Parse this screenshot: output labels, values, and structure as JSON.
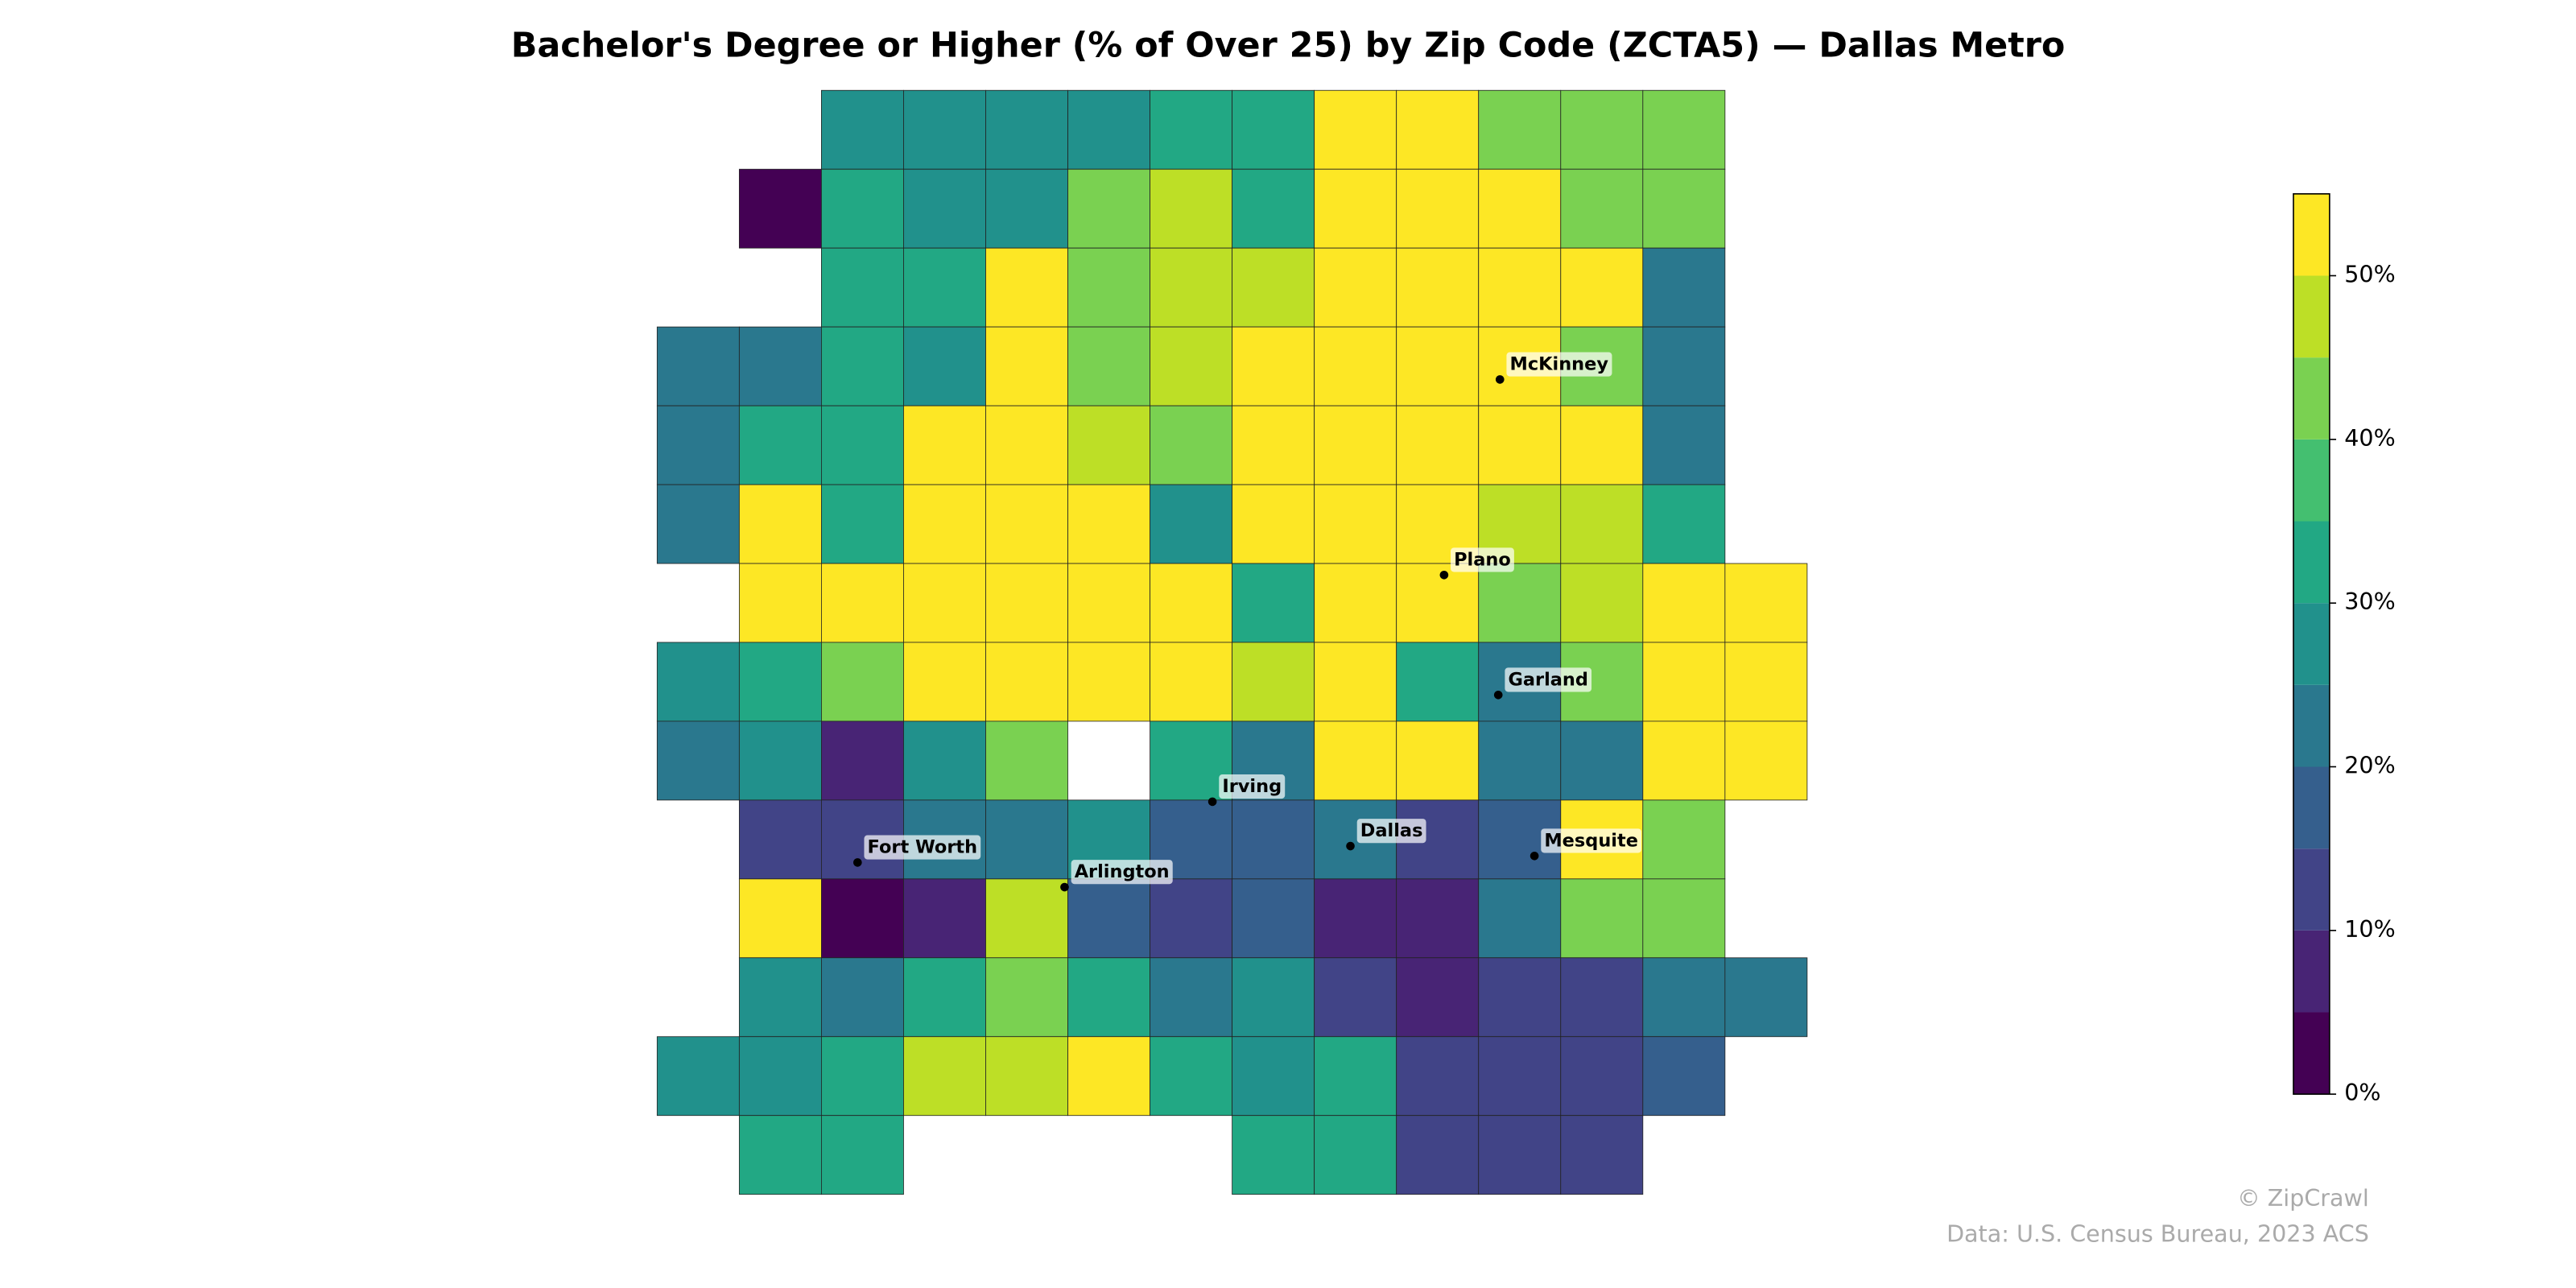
{
  "chart_data": {
    "type": "choropleth",
    "title": "Bachelor's Degree or Higher (% of Over 25) by Zip Code (ZCTA5) — Dallas Metro",
    "grid": [
      [
        null,
        null,
        27,
        27,
        27,
        27,
        32,
        32,
        55,
        55,
        42,
        42,
        42,
        null
      ],
      [
        null,
        2,
        32,
        27,
        27,
        42,
        45,
        32,
        55,
        55,
        55,
        42,
        42,
        null
      ],
      [
        null,
        null,
        32,
        32,
        50,
        42,
        45,
        45,
        55,
        55,
        55,
        55,
        22,
        null
      ],
      [
        22,
        22,
        32,
        27,
        50,
        40,
        45,
        55,
        55,
        55,
        55,
        42,
        22,
        null
      ],
      [
        22,
        32,
        32,
        55,
        55,
        45,
        40,
        55,
        55,
        55,
        55,
        55,
        22,
        null
      ],
      [
        22,
        55,
        32,
        55,
        55,
        55,
        27,
        55,
        55,
        55,
        45,
        45,
        32,
        null
      ],
      [
        null,
        55,
        50,
        55,
        55,
        55,
        55,
        32,
        55,
        50,
        40,
        45,
        50,
        50
      ],
      [
        27,
        32,
        40,
        55,
        55,
        55,
        55,
        45,
        55,
        32,
        20,
        40,
        50,
        50
      ],
      [
        22,
        27,
        7,
        27,
        40,
        null,
        32,
        22,
        55,
        50,
        22,
        22,
        50,
        50
      ],
      [
        null,
        12,
        12,
        22,
        22,
        27,
        17,
        17,
        22,
        12,
        17,
        55,
        40,
        null
      ],
      [
        null,
        50,
        2,
        7,
        45,
        17,
        12,
        17,
        7,
        7,
        22,
        40,
        40,
        null
      ],
      [
        null,
        27,
        22,
        32,
        40,
        32,
        22,
        27,
        12,
        7,
        12,
        12,
        22,
        22
      ],
      [
        27,
        27,
        32,
        45,
        45,
        50,
        32,
        27,
        32,
        12,
        12,
        12,
        17,
        null
      ],
      [
        null,
        32,
        32,
        null,
        null,
        null,
        null,
        32,
        32,
        12,
        12,
        12,
        null,
        null
      ]
    ],
    "colors": [
      "#440154",
      "#482475",
      "#414487",
      "#355f8d",
      "#2a788e",
      "#21918c",
      "#22a884",
      "#44bf70",
      "#7ad151",
      "#bddf26",
      "#fde725"
    ],
    "clim": [
      0,
      55
    ],
    "cticks": [
      {
        "value": 0,
        "label": "0%"
      },
      {
        "value": 10,
        "label": "10%"
      },
      {
        "value": 20,
        "label": "20%"
      },
      {
        "value": 30,
        "label": "30%"
      },
      {
        "value": 40,
        "label": "40%"
      },
      {
        "value": 50,
        "label": "50%"
      }
    ],
    "cities": [
      "McKinney",
      "Plano",
      "Garland",
      "Irving",
      "Dallas",
      "Mesquite",
      "Fort Worth",
      "Arlington"
    ],
    "credit": "© ZipCrawl",
    "source": "Data: U.S. Census Bureau, 2023 ACS"
  }
}
